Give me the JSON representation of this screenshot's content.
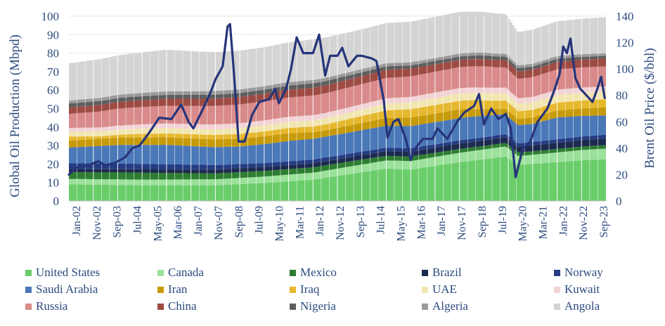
{
  "chart_data": {
    "type": "area",
    "stacked": true,
    "xlabel": "",
    "ylabel": "Global Oil Production (Mbpd)",
    "y2label": "Brent Oil Price ($/bbl)",
    "ylim": [
      0,
      100
    ],
    "y2lim": [
      0,
      140
    ],
    "yticks": [
      "0",
      "10",
      "20",
      "30",
      "40",
      "50",
      "60",
      "70",
      "80",
      "90",
      "100"
    ],
    "y2ticks": [
      "0",
      "20",
      "40",
      "60",
      "80",
      "100",
      "120",
      "140"
    ],
    "x_tick_labels": [
      "Jan-02",
      "Nov-02",
      "Sep-03",
      "Jul-04",
      "May-05",
      "Mar-06",
      "Jan-07",
      "Nov-07",
      "Sep-08",
      "Jul-09",
      "May-10",
      "Mar-11",
      "Jan-12",
      "Nov-12",
      "Sep-13",
      "Jul-14",
      "May-15",
      "Mar-16",
      "Jan-17",
      "Nov-17",
      "Sep-18",
      "Jul-19",
      "May-20",
      "Mar-21",
      "Jan-22",
      "Nov-22",
      "Sep-23"
    ],
    "x_start": "2002-01",
    "x_end": "2023-12",
    "legend_position": "bottom",
    "grid": true,
    "series": [
      {
        "name": "United States",
        "color": "#6acd6a",
        "values": [
          [
            2002,
            9.0
          ],
          [
            2005,
            8.5
          ],
          [
            2008,
            8.5
          ],
          [
            2010,
            9.7
          ],
          [
            2012,
            11.5
          ],
          [
            2014,
            15.5
          ],
          [
            2015,
            17.5
          ],
          [
            2016,
            17
          ],
          [
            2018,
            21
          ],
          [
            2019.9,
            24
          ],
          [
            2020.4,
            19.5
          ],
          [
            2021,
            20
          ],
          [
            2022,
            21
          ],
          [
            2023,
            22
          ],
          [
            2023.95,
            22.5
          ]
        ]
      },
      {
        "name": "Canada",
        "color": "#9be19b",
        "values": [
          [
            2002,
            2.9
          ],
          [
            2008,
            3.2
          ],
          [
            2012,
            3.8
          ],
          [
            2016,
            4.6
          ],
          [
            2019.9,
            5.5
          ],
          [
            2020.4,
            4.8
          ],
          [
            2023.95,
            5.8
          ]
        ]
      },
      {
        "name": "Mexico",
        "color": "#2e7d32",
        "values": [
          [
            2002,
            3.6
          ],
          [
            2004.5,
            3.8
          ],
          [
            2008,
            3.2
          ],
          [
            2012,
            2.9
          ],
          [
            2016,
            2.4
          ],
          [
            2019,
            1.9
          ],
          [
            2023.95,
            1.9
          ]
        ]
      },
      {
        "name": "Brazil",
        "color": "#1c2a4f",
        "values": [
          [
            2002,
            1.6
          ],
          [
            2008,
            2.1
          ],
          [
            2012,
            2.2
          ],
          [
            2016,
            2.7
          ],
          [
            2019,
            3.0
          ],
          [
            2023.95,
            3.6
          ]
        ]
      },
      {
        "name": "Norway",
        "color": "#253c82",
        "values": [
          [
            2002,
            3.3
          ],
          [
            2006,
            2.8
          ],
          [
            2010,
            2.1
          ],
          [
            2014,
            1.9
          ],
          [
            2019,
            1.7
          ],
          [
            2023.95,
            2.0
          ]
        ]
      },
      {
        "name": "Saudi Arabia",
        "color": "#4a78b8",
        "values": [
          [
            2002,
            8.5
          ],
          [
            2004,
            10
          ],
          [
            2006,
            10.5
          ],
          [
            2007.5,
            9.8
          ],
          [
            2009,
            9.5
          ],
          [
            2011,
            11
          ],
          [
            2013,
            11.4
          ],
          [
            2016,
            12
          ],
          [
            2018.5,
            12.0
          ],
          [
            2019.5,
            11.2
          ],
          [
            2020.4,
            9.8
          ],
          [
            2021,
            9.8
          ],
          [
            2022,
            11.8
          ],
          [
            2023.5,
            10.8
          ],
          [
            2023.95,
            10.5
          ]
        ]
      },
      {
        "name": "Iran",
        "color": "#c79a0a",
        "values": [
          [
            2002,
            3.8
          ],
          [
            2008,
            4.2
          ],
          [
            2011,
            4.2
          ],
          [
            2012.5,
            3.4
          ],
          [
            2016,
            4.6
          ],
          [
            2018,
            4.8
          ],
          [
            2019.5,
            3.0
          ],
          [
            2022,
            3.8
          ],
          [
            2023.95,
            4.3
          ]
        ]
      },
      {
        "name": "Iraq",
        "color": "#e6b82e",
        "values": [
          [
            2002,
            2.2
          ],
          [
            2003.3,
            1.3
          ],
          [
            2005,
            2.0
          ],
          [
            2008,
            2.4
          ],
          [
            2012,
            3.0
          ],
          [
            2016,
            4.5
          ],
          [
            2019,
            4.7
          ],
          [
            2021,
            4.1
          ],
          [
            2023.95,
            4.4
          ]
        ]
      },
      {
        "name": "UAE",
        "color": "#f2e6b0",
        "values": [
          [
            2002,
            2.6
          ],
          [
            2008,
            3.0
          ],
          [
            2014,
            3.5
          ],
          [
            2019,
            4.0
          ],
          [
            2023.95,
            4.2
          ]
        ]
      },
      {
        "name": "Kuwait",
        "color": "#f2d4d6",
        "values": [
          [
            2002,
            2.0
          ],
          [
            2008,
            2.7
          ],
          [
            2014,
            2.9
          ],
          [
            2019,
            3.0
          ],
          [
            2023.95,
            2.8
          ]
        ]
      },
      {
        "name": "Russia",
        "color": "#d98a8a",
        "values": [
          [
            2002,
            7.6
          ],
          [
            2004,
            9.2
          ],
          [
            2008,
            10
          ],
          [
            2012,
            10.6
          ],
          [
            2016,
            11.1
          ],
          [
            2019,
            11.5
          ],
          [
            2020.4,
            10.5
          ],
          [
            2022,
            11.0
          ],
          [
            2023.95,
            10.8
          ]
        ]
      },
      {
        "name": "China",
        "color": "#9e4b44",
        "values": [
          [
            2002,
            3.4
          ],
          [
            2008,
            4.0
          ],
          [
            2012,
            4.2
          ],
          [
            2015,
            4.4
          ],
          [
            2018,
            3.8
          ],
          [
            2023.95,
            4.2
          ]
        ]
      },
      {
        "name": "Nigeria",
        "color": "#5e5e5e",
        "values": [
          [
            2002,
            2.2
          ],
          [
            2008,
            2.1
          ],
          [
            2012,
            2.4
          ],
          [
            2016,
            1.8
          ],
          [
            2019,
            2.0
          ],
          [
            2023.95,
            1.5
          ]
        ]
      },
      {
        "name": "Algeria",
        "color": "#9a9a9a",
        "values": [
          [
            2002,
            1.6
          ],
          [
            2008,
            2.0
          ],
          [
            2014,
            1.7
          ],
          [
            2023.95,
            1.4
          ]
        ]
      },
      {
        "name": "Angola",
        "color": "#d4d4d4",
        "values": [
          [
            2002,
            20.2
          ],
          [
            2006,
            22.5
          ],
          [
            2008,
            21
          ],
          [
            2010,
            21
          ],
          [
            2012,
            22
          ],
          [
            2014,
            21.5
          ],
          [
            2016,
            22
          ],
          [
            2018,
            22.5
          ],
          [
            2019.9,
            21.5
          ],
          [
            2020.4,
            18
          ],
          [
            2021,
            18.5
          ],
          [
            2023.95,
            19.5
          ]
        ]
      }
    ],
    "price_series": {
      "name": "Brent Oil Price ($/bbl)",
      "axis": "right",
      "color": "#26357a",
      "values": [
        [
          2002,
          20
        ],
        [
          2002.3,
          25
        ],
        [
          2002.8,
          27
        ],
        [
          2003.2,
          30
        ],
        [
          2003.5,
          27
        ],
        [
          2003.9,
          29
        ],
        [
          2004.3,
          33
        ],
        [
          2004.6,
          40
        ],
        [
          2004.9,
          42
        ],
        [
          2005.3,
          52
        ],
        [
          2005.7,
          63
        ],
        [
          2006.2,
          62
        ],
        [
          2006.6,
          73
        ],
        [
          2006.9,
          60
        ],
        [
          2007.1,
          55
        ],
        [
          2007.5,
          70
        ],
        [
          2007.8,
          82
        ],
        [
          2008.0,
          92
        ],
        [
          2008.3,
          102
        ],
        [
          2008.5,
          132
        ],
        [
          2008.6,
          134
        ],
        [
          2008.75,
          100
        ],
        [
          2008.95,
          45
        ],
        [
          2009.2,
          45
        ],
        [
          2009.5,
          65
        ],
        [
          2009.8,
          75
        ],
        [
          2010.2,
          77
        ],
        [
          2010.45,
          85
        ],
        [
          2010.6,
          74
        ],
        [
          2010.9,
          85
        ],
        [
          2011.1,
          100
        ],
        [
          2011.33,
          124
        ],
        [
          2011.6,
          112
        ],
        [
          2012.0,
          112
        ],
        [
          2012.25,
          126
        ],
        [
          2012.5,
          95
        ],
        [
          2012.7,
          110
        ],
        [
          2013.0,
          110
        ],
        [
          2013.2,
          116
        ],
        [
          2013.45,
          102
        ],
        [
          2013.8,
          110
        ],
        [
          2014.0,
          110
        ],
        [
          2014.4,
          108
        ],
        [
          2014.6,
          106
        ],
        [
          2014.9,
          76
        ],
        [
          2015.05,
          48
        ],
        [
          2015.3,
          60
        ],
        [
          2015.5,
          62
        ],
        [
          2015.8,
          47
        ],
        [
          2016.0,
          31
        ],
        [
          2016.2,
          40
        ],
        [
          2016.5,
          47
        ],
        [
          2016.9,
          47
        ],
        [
          2017.1,
          55
        ],
        [
          2017.5,
          47
        ],
        [
          2017.9,
          60
        ],
        [
          2018.2,
          67
        ],
        [
          2018.6,
          72
        ],
        [
          2018.8,
          81
        ],
        [
          2019.0,
          58
        ],
        [
          2019.3,
          70
        ],
        [
          2019.6,
          62
        ],
        [
          2019.9,
          66
        ],
        [
          2020.1,
          55
        ],
        [
          2020.3,
          18
        ],
        [
          2020.6,
          40
        ],
        [
          2020.9,
          45
        ],
        [
          2021.2,
          60
        ],
        [
          2021.6,
          70
        ],
        [
          2021.85,
          82
        ],
        [
          2022.1,
          96
        ],
        [
          2022.25,
          117
        ],
        [
          2022.4,
          112
        ],
        [
          2022.55,
          123
        ],
        [
          2022.75,
          93
        ],
        [
          2022.95,
          85
        ],
        [
          2023.2,
          80
        ],
        [
          2023.45,
          75
        ],
        [
          2023.65,
          85
        ],
        [
          2023.8,
          94
        ],
        [
          2023.95,
          78
        ]
      ]
    }
  }
}
